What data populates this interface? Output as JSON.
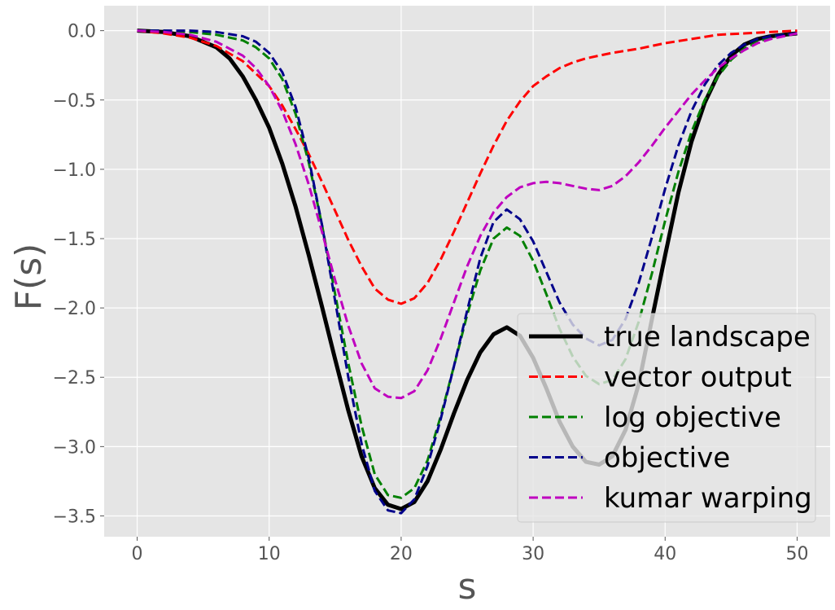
{
  "chart_data": {
    "type": "line",
    "title": "",
    "xlabel": "s",
    "ylabel": "F(s)",
    "xlim": [
      -2.5,
      52.5
    ],
    "ylim": [
      -3.65,
      0.18
    ],
    "xticks": [
      0,
      10,
      20,
      30,
      40,
      50
    ],
    "yticks": [
      0.0,
      -0.5,
      -1.0,
      -1.5,
      -2.0,
      -2.5,
      -3.0,
      -3.5
    ],
    "xtick_labels": [
      "0",
      "10",
      "20",
      "30",
      "40",
      "50"
    ],
    "ytick_labels": [
      "0.0",
      "−0.5",
      "−1.0",
      "−1.5",
      "−2.0",
      "−2.5",
      "−3.0",
      "−3.5"
    ],
    "grid": true,
    "background": "#e5e5e5",
    "legend_position": "lower-right",
    "series": [
      {
        "name": "true landscape",
        "color": "#000000",
        "style": "solid",
        "x": [
          0,
          2,
          4,
          6,
          7,
          8,
          9,
          10,
          11,
          12,
          13,
          14,
          15,
          16,
          17,
          18,
          19,
          20,
          21,
          22,
          23,
          24,
          25,
          26,
          27,
          28,
          29,
          30,
          31,
          32,
          33,
          34,
          35,
          36,
          37,
          38,
          39,
          40,
          41,
          42,
          43,
          44,
          45,
          46,
          47,
          48,
          49,
          50
        ],
        "y": [
          0.0,
          -0.01,
          -0.04,
          -0.12,
          -0.2,
          -0.33,
          -0.5,
          -0.7,
          -0.96,
          -1.27,
          -1.62,
          -1.99,
          -2.37,
          -2.74,
          -3.07,
          -3.3,
          -3.42,
          -3.45,
          -3.4,
          -3.25,
          -3.02,
          -2.76,
          -2.52,
          -2.32,
          -2.19,
          -2.14,
          -2.2,
          -2.36,
          -2.58,
          -2.82,
          -3.0,
          -3.11,
          -3.13,
          -3.07,
          -2.88,
          -2.55,
          -2.08,
          -1.62,
          -1.17,
          -0.8,
          -0.52,
          -0.32,
          -0.18,
          -0.1,
          -0.06,
          -0.04,
          -0.03,
          -0.02
        ]
      },
      {
        "name": "vector output",
        "color": "#ff0000",
        "style": "dashed",
        "x": [
          0,
          2,
          4,
          6,
          8,
          10,
          11,
          12,
          13,
          14,
          15,
          16,
          17,
          18,
          19,
          20,
          21,
          22,
          23,
          24,
          25,
          26,
          27,
          28,
          29,
          30,
          31,
          32,
          33,
          34,
          35,
          36,
          38,
          40,
          42,
          44,
          46,
          48,
          50
        ],
        "y": [
          0.0,
          -0.02,
          -0.05,
          -0.11,
          -0.22,
          -0.4,
          -0.54,
          -0.71,
          -0.89,
          -1.09,
          -1.3,
          -1.51,
          -1.7,
          -1.86,
          -1.94,
          -1.97,
          -1.93,
          -1.82,
          -1.65,
          -1.45,
          -1.24,
          -1.03,
          -0.83,
          -0.65,
          -0.51,
          -0.4,
          -0.33,
          -0.27,
          -0.23,
          -0.2,
          -0.18,
          -0.16,
          -0.13,
          -0.09,
          -0.06,
          -0.03,
          -0.02,
          -0.01,
          0.0
        ]
      },
      {
        "name": "log objective",
        "color": "#008000",
        "style": "dashed",
        "x": [
          0,
          2,
          4,
          6,
          8,
          9,
          10,
          11,
          12,
          13,
          14,
          15,
          16,
          17,
          18,
          19,
          20,
          21,
          22,
          23,
          24,
          25,
          26,
          27,
          28,
          29,
          30,
          31,
          32,
          33,
          34,
          35,
          36,
          37,
          38,
          39,
          40,
          41,
          42,
          43,
          44,
          45,
          46,
          47,
          48,
          49,
          50
        ],
        "y": [
          0.0,
          -0.0,
          -0.01,
          -0.03,
          -0.07,
          -0.12,
          -0.2,
          -0.35,
          -0.6,
          -0.95,
          -1.4,
          -1.9,
          -2.4,
          -2.85,
          -3.2,
          -3.35,
          -3.37,
          -3.3,
          -3.1,
          -2.78,
          -2.42,
          -2.05,
          -1.73,
          -1.5,
          -1.42,
          -1.48,
          -1.66,
          -1.9,
          -2.15,
          -2.35,
          -2.49,
          -2.55,
          -2.52,
          -2.37,
          -2.1,
          -1.75,
          -1.37,
          -1.02,
          -0.73,
          -0.5,
          -0.33,
          -0.21,
          -0.13,
          -0.08,
          -0.05,
          -0.03,
          -0.02
        ]
      },
      {
        "name": "objective",
        "color": "#00008b",
        "style": "dashed",
        "x": [
          0,
          2,
          4,
          6,
          8,
          9,
          10,
          11,
          12,
          13,
          14,
          15,
          16,
          17,
          18,
          19,
          20,
          21,
          22,
          23,
          24,
          25,
          26,
          27,
          28,
          29,
          30,
          31,
          32,
          33,
          34,
          35,
          36,
          37,
          38,
          39,
          40,
          41,
          42,
          43,
          44,
          45,
          46,
          47,
          48,
          49,
          50
        ],
        "y": [
          0.0,
          -0.0,
          -0.0,
          -0.01,
          -0.04,
          -0.08,
          -0.16,
          -0.3,
          -0.55,
          -0.92,
          -1.4,
          -1.95,
          -2.5,
          -2.98,
          -3.32,
          -3.46,
          -3.48,
          -3.38,
          -3.14,
          -2.8,
          -2.42,
          -2.02,
          -1.64,
          -1.38,
          -1.29,
          -1.36,
          -1.52,
          -1.74,
          -1.96,
          -2.12,
          -2.22,
          -2.27,
          -2.23,
          -2.08,
          -1.82,
          -1.49,
          -1.14,
          -0.83,
          -0.58,
          -0.39,
          -0.25,
          -0.16,
          -0.1,
          -0.06,
          -0.04,
          -0.03,
          -0.02
        ]
      },
      {
        "name": "kumar warping",
        "color": "#bf00bf",
        "style": "dashed",
        "x": [
          0,
          2,
          4,
          6,
          8,
          9,
          10,
          11,
          12,
          13,
          14,
          15,
          16,
          17,
          18,
          19,
          20,
          21,
          22,
          23,
          24,
          25,
          26,
          27,
          28,
          29,
          30,
          31,
          32,
          33,
          34,
          35,
          36,
          37,
          38,
          39,
          40,
          41,
          42,
          43,
          44,
          45,
          46,
          47,
          48,
          49,
          50
        ],
        "y": [
          0.0,
          -0.01,
          -0.03,
          -0.08,
          -0.18,
          -0.27,
          -0.4,
          -0.58,
          -0.82,
          -1.11,
          -1.45,
          -1.8,
          -2.13,
          -2.4,
          -2.58,
          -2.64,
          -2.65,
          -2.6,
          -2.45,
          -2.22,
          -1.96,
          -1.7,
          -1.48,
          -1.31,
          -1.2,
          -1.13,
          -1.1,
          -1.09,
          -1.1,
          -1.12,
          -1.14,
          -1.15,
          -1.12,
          -1.05,
          -0.95,
          -0.83,
          -0.7,
          -0.58,
          -0.46,
          -0.36,
          -0.27,
          -0.2,
          -0.14,
          -0.09,
          -0.06,
          -0.04,
          -0.02
        ]
      }
    ]
  }
}
